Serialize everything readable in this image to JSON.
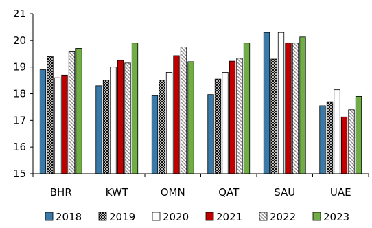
{
  "chart_data": {
    "type": "bar",
    "categories": [
      "BHR",
      "KWT",
      "OMN",
      "QAT",
      "SAU",
      "UAE"
    ],
    "ylim": [
      15,
      21
    ],
    "yticks": [
      15,
      16,
      17,
      18,
      19,
      20,
      21
    ],
    "grid": false,
    "legend_position": "bottom",
    "series": [
      {
        "name": "2018",
        "color": "#3a79a8",
        "pattern": "solid",
        "values": [
          18.9,
          18.3,
          17.93,
          17.97,
          20.3,
          17.55
        ]
      },
      {
        "name": "2019",
        "color": "#000000",
        "pattern": "crosshatch",
        "values": [
          19.4,
          18.5,
          18.5,
          18.55,
          19.3,
          17.7
        ]
      },
      {
        "name": "2020",
        "color": "#ffffff",
        "pattern": "outline",
        "values": [
          18.6,
          19.0,
          18.8,
          18.8,
          20.3,
          18.15
        ]
      },
      {
        "name": "2021",
        "color": "#c00000",
        "pattern": "solid",
        "values": [
          18.7,
          19.25,
          19.43,
          19.22,
          19.9,
          17.13
        ]
      },
      {
        "name": "2022",
        "color": "#a6a6a6",
        "pattern": "diagonal",
        "values": [
          19.6,
          19.15,
          19.75,
          19.33,
          19.9,
          17.4
        ]
      },
      {
        "name": "2023",
        "color": "#70ad47",
        "pattern": "solid",
        "values": [
          19.7,
          19.9,
          19.2,
          19.9,
          20.13,
          17.9
        ]
      }
    ]
  }
}
